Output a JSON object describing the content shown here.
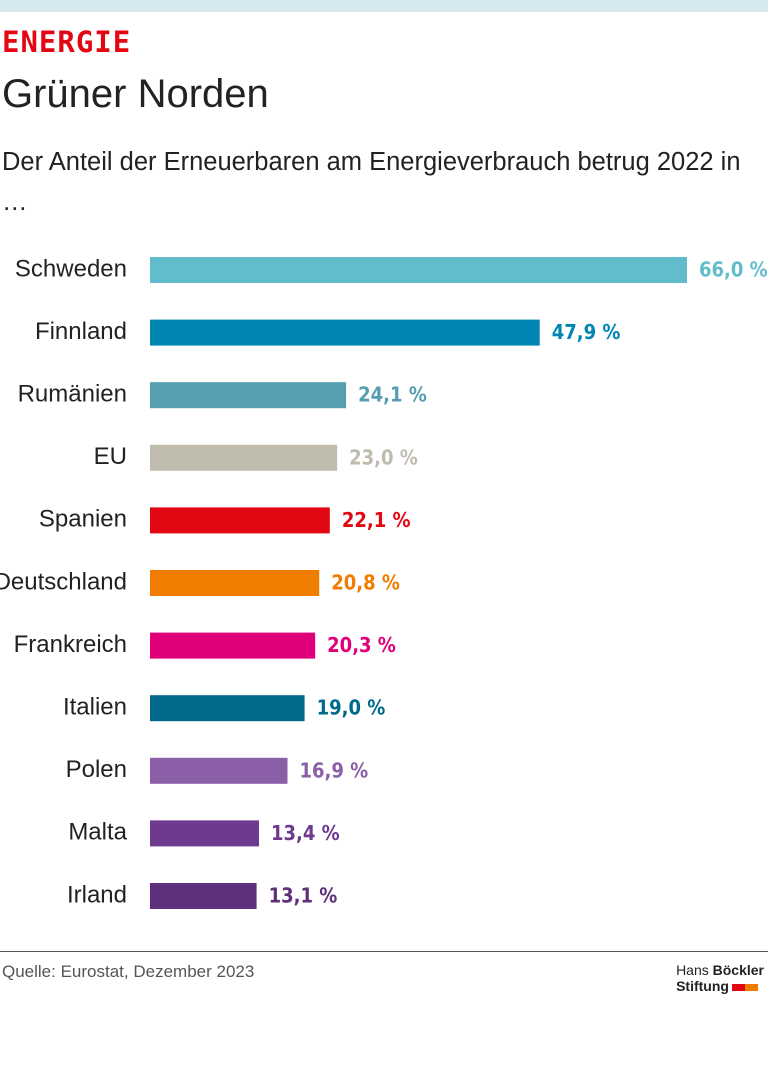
{
  "chart_data": {
    "type": "bar",
    "orientation": "horizontal",
    "kicker": "ENERGIE",
    "title": "Grüner Norden",
    "subtitle": "Der Anteil der Erneuerbaren am Energieverbrauch betrug 2022 in …",
    "categories": [
      "Schweden",
      "Finnland",
      "Rumänien",
      "EU",
      "Spanien",
      "Deutschland",
      "Frankreich",
      "Italien",
      "Polen",
      "Malta",
      "Irland"
    ],
    "values": [
      66.0,
      47.9,
      24.1,
      23.0,
      22.1,
      20.8,
      20.3,
      19.0,
      16.9,
      13.4,
      13.1
    ],
    "value_labels": [
      "66,0 %",
      "47,9 %",
      "24,1 %",
      "23,0 %",
      "22,1 %",
      "20,8 %",
      "20,3 %",
      "19,0 %",
      "16,9 %",
      "13,4 %",
      "13,1 %"
    ],
    "colors": [
      "#62bccb",
      "#0086b3",
      "#559fb0",
      "#bfbcae",
      "#e30613",
      "#f07d00",
      "#e0007a",
      "#00698c",
      "#8a5fa8",
      "#6d3a8f",
      "#5e2f7a"
    ],
    "source": "Quelle: Eurostat, Dezember 2023",
    "logo": {
      "line1": "Hans",
      "line1_bold": "Böckler",
      "line2": "Stiftung"
    }
  }
}
